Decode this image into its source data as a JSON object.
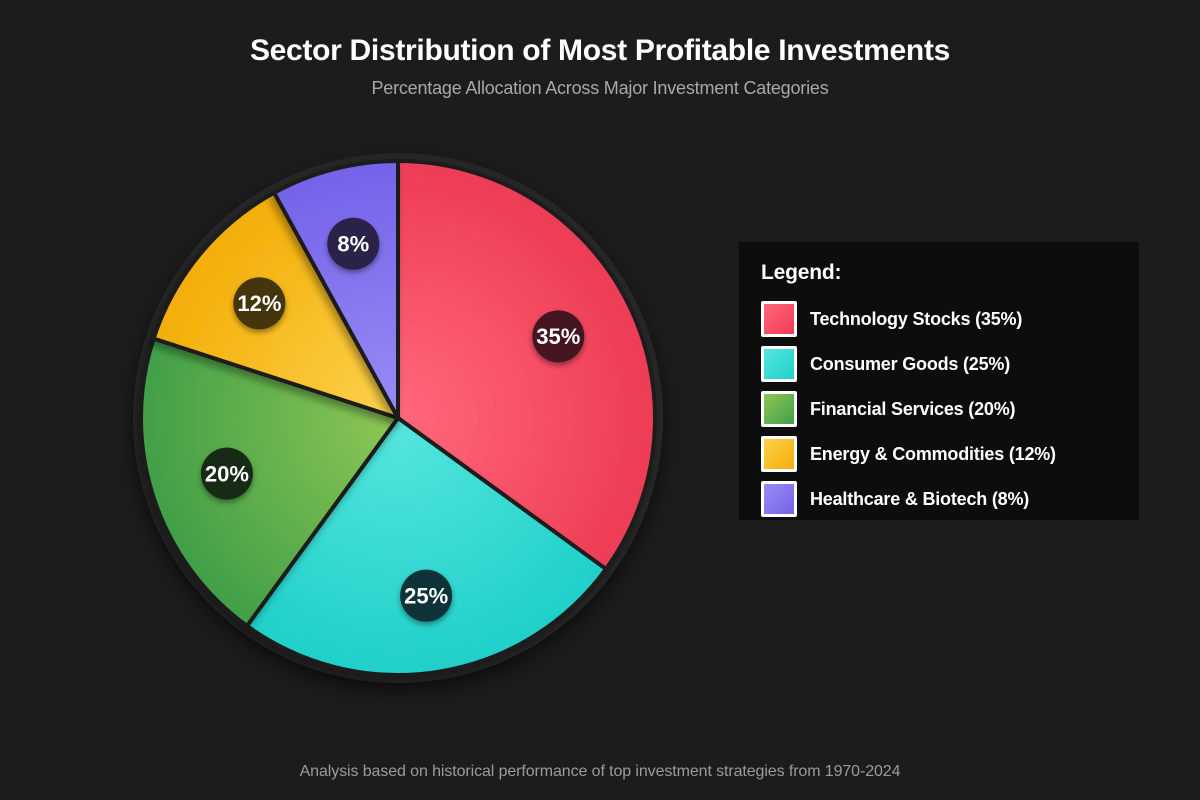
{
  "title": "Sector Distribution of Most Profitable Investments",
  "subtitle": "Percentage Allocation Across Major Investment Categories",
  "footer": "Analysis based on historical performance of top investment strategies from 1970-2024",
  "page_colors": {
    "background": "#1c1c1c",
    "legend_background": "#0d0d0d",
    "title_text": "#ffffff",
    "subtitle_text": "#a8a8a8",
    "footer_text": "#9b9b9b",
    "slice_stroke": "#1f1f1f",
    "outer_ring": "#262626"
  },
  "legend": {
    "title": "Legend:",
    "items": [
      {
        "label": "Technology Stocks (35%)"
      },
      {
        "label": "Consumer Goods (25%)"
      },
      {
        "label": "Financial Services (20%)"
      },
      {
        "label": "Energy & Commodities (12%)"
      },
      {
        "label": "Healthcare & Biotech (8%)"
      }
    ]
  },
  "chart_data": {
    "type": "pie",
    "title": "Sector Distribution of Most Profitable Investments",
    "subtitle": "Percentage Allocation Across Major Investment Categories",
    "categories": [
      "Technology Stocks",
      "Consumer Goods",
      "Financial Services",
      "Energy & Commodities",
      "Healthcare & Biotech"
    ],
    "values": [
      35,
      25,
      20,
      12,
      8
    ],
    "labels": [
      "35%",
      "25%",
      "20%",
      "12%",
      "8%"
    ],
    "colors": [
      "#ee3c55",
      "#1fd0c9",
      "#419f48",
      "#f3ae06",
      "#7463ea"
    ],
    "colors_light": [
      "#ff687c",
      "#55e6de",
      "#8ec754",
      "#fdd14d",
      "#988cf5"
    ],
    "label_circle_colors": [
      "#451521",
      "#0c3237",
      "#172c14",
      "#443407",
      "#29224a"
    ],
    "label_text_color": "#ffffff",
    "start_angle_deg": -90,
    "direction": "clockwise",
    "legend_position": "right",
    "annotation": "Analysis based on historical performance of top investment strategies from 1970-2024"
  }
}
